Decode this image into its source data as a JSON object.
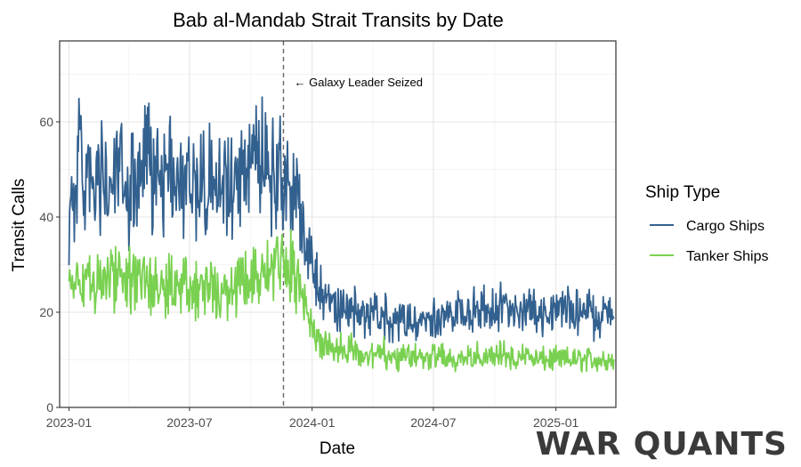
{
  "chart_data": {
    "type": "line",
    "title": "Bab al-Mandab Strait Transits by Date",
    "xlabel": "Date",
    "ylabel": "Transit Calls",
    "x_ticks": [
      "2023-01",
      "2023-07",
      "2024-01",
      "2024-07",
      "2025-01"
    ],
    "y_ticks": [
      0,
      20,
      40,
      60
    ],
    "xlim": [
      "2022-12-18",
      "2025-04-01"
    ],
    "ylim": [
      0,
      77
    ],
    "grid": true,
    "legend": {
      "title": "Ship Type",
      "placement": "right"
    },
    "annotation": {
      "date": "2023-11-19",
      "text": "← Galaxy Leader Seized"
    },
    "series": [
      {
        "name": "Cargo Ships",
        "color": "#33618F",
        "points": [
          [
            "2023-01-01",
            40
          ],
          [
            "2023-01-15",
            52
          ],
          [
            "2023-02-01",
            45
          ],
          [
            "2023-02-15",
            48
          ],
          [
            "2023-03-01",
            46
          ],
          [
            "2023-03-15",
            49
          ],
          [
            "2023-04-01",
            44
          ],
          [
            "2023-04-15",
            47
          ],
          [
            "2023-05-01",
            50
          ],
          [
            "2023-05-15",
            51
          ],
          [
            "2023-06-01",
            49
          ],
          [
            "2023-06-15",
            47
          ],
          [
            "2023-07-01",
            48
          ],
          [
            "2023-07-15",
            47
          ],
          [
            "2023-08-01",
            49
          ],
          [
            "2023-08-15",
            48
          ],
          [
            "2023-09-01",
            47
          ],
          [
            "2023-09-15",
            49
          ],
          [
            "2023-10-01",
            51
          ],
          [
            "2023-10-15",
            52
          ],
          [
            "2023-11-01",
            50
          ],
          [
            "2023-11-15",
            49
          ],
          [
            "2023-12-01",
            47
          ],
          [
            "2023-12-15",
            40
          ],
          [
            "2024-01-01",
            31
          ],
          [
            "2024-01-15",
            24
          ],
          [
            "2024-02-01",
            22
          ],
          [
            "2024-02-15",
            21
          ],
          [
            "2024-03-01",
            20
          ],
          [
            "2024-03-15",
            20
          ],
          [
            "2024-04-01",
            19
          ],
          [
            "2024-04-15",
            19
          ],
          [
            "2024-05-01",
            19
          ],
          [
            "2024-05-15",
            18
          ],
          [
            "2024-06-01",
            18
          ],
          [
            "2024-06-15",
            18
          ],
          [
            "2024-07-01",
            19
          ],
          [
            "2024-07-15",
            19
          ],
          [
            "2024-08-01",
            20
          ],
          [
            "2024-08-15",
            20
          ],
          [
            "2024-09-01",
            20
          ],
          [
            "2024-09-15",
            21
          ],
          [
            "2024-10-01",
            21
          ],
          [
            "2024-10-15",
            21
          ],
          [
            "2024-11-01",
            21
          ],
          [
            "2024-11-15",
            21
          ],
          [
            "2024-12-01",
            20
          ],
          [
            "2024-12-15",
            20
          ],
          [
            "2025-01-01",
            20
          ],
          [
            "2025-01-15",
            21
          ],
          [
            "2025-02-01",
            20
          ],
          [
            "2025-02-15",
            20
          ],
          [
            "2025-03-01",
            19
          ],
          [
            "2025-03-15",
            20
          ]
        ]
      },
      {
        "name": "Tanker Ships",
        "color": "#7AD151",
        "points": [
          [
            "2023-01-01",
            27
          ],
          [
            "2023-01-15",
            27
          ],
          [
            "2023-02-01",
            26
          ],
          [
            "2023-02-15",
            27
          ],
          [
            "2023-03-01",
            27
          ],
          [
            "2023-03-15",
            28
          ],
          [
            "2023-04-01",
            27
          ],
          [
            "2023-04-15",
            26
          ],
          [
            "2023-05-01",
            27
          ],
          [
            "2023-05-15",
            27
          ],
          [
            "2023-06-01",
            26
          ],
          [
            "2023-06-15",
            26
          ],
          [
            "2023-07-01",
            26
          ],
          [
            "2023-07-15",
            25
          ],
          [
            "2023-08-01",
            26
          ],
          [
            "2023-08-15",
            26
          ],
          [
            "2023-09-01",
            25
          ],
          [
            "2023-09-15",
            26
          ],
          [
            "2023-10-01",
            27
          ],
          [
            "2023-10-15",
            28
          ],
          [
            "2023-11-01",
            29
          ],
          [
            "2023-11-15",
            30
          ],
          [
            "2023-12-01",
            30
          ],
          [
            "2023-12-15",
            24
          ],
          [
            "2024-01-01",
            17
          ],
          [
            "2024-01-15",
            13
          ],
          [
            "2024-02-01",
            12
          ],
          [
            "2024-02-15",
            12
          ],
          [
            "2024-03-01",
            12
          ],
          [
            "2024-03-15",
            11
          ],
          [
            "2024-04-01",
            11
          ],
          [
            "2024-04-15",
            12
          ],
          [
            "2024-05-01",
            11
          ],
          [
            "2024-05-15",
            11
          ],
          [
            "2024-06-01",
            11
          ],
          [
            "2024-06-15",
            10
          ],
          [
            "2024-07-01",
            11
          ],
          [
            "2024-07-15",
            11
          ],
          [
            "2024-08-01",
            10
          ],
          [
            "2024-08-15",
            11
          ],
          [
            "2024-09-01",
            11
          ],
          [
            "2024-09-15",
            10
          ],
          [
            "2024-10-01",
            11
          ],
          [
            "2024-10-15",
            11
          ],
          [
            "2024-11-01",
            10
          ],
          [
            "2024-11-15",
            11
          ],
          [
            "2024-12-01",
            10
          ],
          [
            "2024-12-15",
            10
          ],
          [
            "2025-01-01",
            10
          ],
          [
            "2025-01-15",
            10
          ],
          [
            "2025-02-01",
            10
          ],
          [
            "2025-02-15",
            10
          ],
          [
            "2025-03-01",
            10
          ],
          [
            "2025-03-15",
            10
          ]
        ]
      }
    ]
  },
  "watermark": "WAR QUANTS"
}
